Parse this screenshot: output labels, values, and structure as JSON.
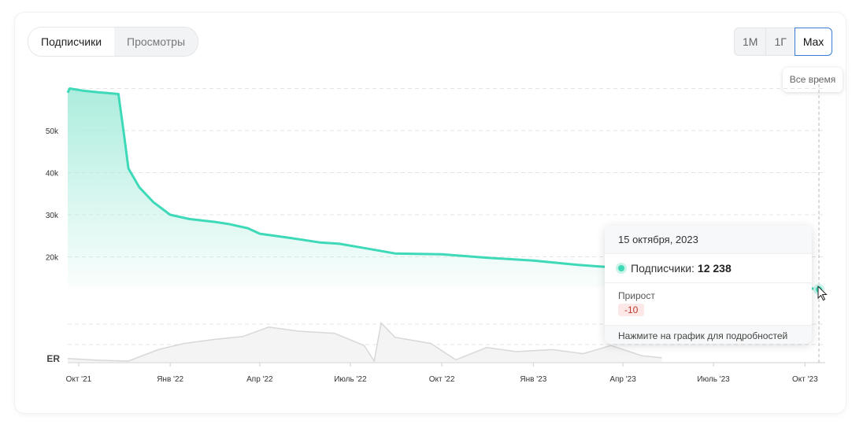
{
  "metric_tabs": [
    {
      "label": "Подписчики",
      "active": true
    },
    {
      "label": "Просмотры",
      "active": false
    }
  ],
  "range_tabs": [
    {
      "label": "1М",
      "active": false
    },
    {
      "label": "1Г",
      "active": false
    },
    {
      "label": "Max",
      "active": true
    }
  ],
  "range_hint": "Все время",
  "colors": {
    "line": "#3ed9b8",
    "fill_top": "#a8ecdc",
    "er_line": "#d8d8d8",
    "grid": "#e4e4e4"
  },
  "tooltip": {
    "date": "15 октября, 2023",
    "series_label": "Подписчики:",
    "series_value": "12 238",
    "growth_label": "Прирост",
    "growth_value": "-10",
    "footer": "Нажмите на график для подробностей"
  },
  "chart_data": {
    "type": "area",
    "y_ticks": [
      "20k",
      "30k",
      "40k",
      "50k"
    ],
    "x_ticks": [
      "Окт '21",
      "Янв '22",
      "Апр '22",
      "Июль '22",
      "Окт '22",
      "Янв '23",
      "Апр '23",
      "Июль '23",
      "Окт '23"
    ],
    "er_label": "ER",
    "ylim": [
      10000,
      60000
    ],
    "series": [
      {
        "values": [
          {
            "x": "2021-09-20",
            "y": 59000
          },
          {
            "x": "2021-09-22",
            "y": 60000
          },
          {
            "x": "2021-10-05",
            "y": 59500
          },
          {
            "x": "2021-10-25",
            "y": 59000
          },
          {
            "x": "2021-11-10",
            "y": 58700
          },
          {
            "x": "2021-11-15",
            "y": 50000
          },
          {
            "x": "2021-11-20",
            "y": 41000
          },
          {
            "x": "2021-12-01",
            "y": 36500
          },
          {
            "x": "2021-12-15",
            "y": 33000
          },
          {
            "x": "2022-01-01",
            "y": 30000
          },
          {
            "x": "2022-01-20",
            "y": 29000
          },
          {
            "x": "2022-02-15",
            "y": 28300
          },
          {
            "x": "2022-03-01",
            "y": 27800
          },
          {
            "x": "2022-03-20",
            "y": 26800
          },
          {
            "x": "2022-04-01",
            "y": 25500
          },
          {
            "x": "2022-05-01",
            "y": 24500
          },
          {
            "x": "2022-06-01",
            "y": 23400
          },
          {
            "x": "2022-06-20",
            "y": 23100
          },
          {
            "x": "2022-07-15",
            "y": 22100
          },
          {
            "x": "2022-08-15",
            "y": 20800
          },
          {
            "x": "2022-10-01",
            "y": 20600
          },
          {
            "x": "2022-11-15",
            "y": 19800
          },
          {
            "x": "2023-01-01",
            "y": 19100
          },
          {
            "x": "2023-02-15",
            "y": 18100
          },
          {
            "x": "2023-04-01",
            "y": 17300
          },
          {
            "x": "2023-06-01",
            "y": 16200
          },
          {
            "x": "2023-08-01",
            "y": 14600
          },
          {
            "x": "2023-10-15",
            "y": 12238
          }
        ]
      }
    ],
    "er_series": [
      {
        "x": "2021-09-20",
        "y": 0.08
      },
      {
        "x": "2021-10-20",
        "y": 0.04
      },
      {
        "x": "2021-11-20",
        "y": 0.02
      },
      {
        "x": "2021-12-20",
        "y": 0.3
      },
      {
        "x": "2022-01-15",
        "y": 0.45
      },
      {
        "x": "2022-02-15",
        "y": 0.55
      },
      {
        "x": "2022-03-15",
        "y": 0.62
      },
      {
        "x": "2022-04-10",
        "y": 0.85
      },
      {
        "x": "2022-05-10",
        "y": 0.75
      },
      {
        "x": "2022-06-15",
        "y": 0.7
      },
      {
        "x": "2022-07-15",
        "y": 0.4
      },
      {
        "x": "2022-07-25",
        "y": 0.02
      },
      {
        "x": "2022-08-01",
        "y": 0.95
      },
      {
        "x": "2022-08-15",
        "y": 0.6
      },
      {
        "x": "2022-09-20",
        "y": 0.45
      },
      {
        "x": "2022-10-15",
        "y": 0.05
      },
      {
        "x": "2022-11-15",
        "y": 0.35
      },
      {
        "x": "2022-12-15",
        "y": 0.25
      },
      {
        "x": "2023-01-20",
        "y": 0.3
      },
      {
        "x": "2023-02-20",
        "y": 0.2
      },
      {
        "x": "2023-03-20",
        "y": 0.4
      },
      {
        "x": "2023-04-20",
        "y": 0.15
      },
      {
        "x": "2023-05-10",
        "y": 0.1
      }
    ],
    "highlight": {
      "x": "2023-10-15",
      "y": 12238
    }
  }
}
